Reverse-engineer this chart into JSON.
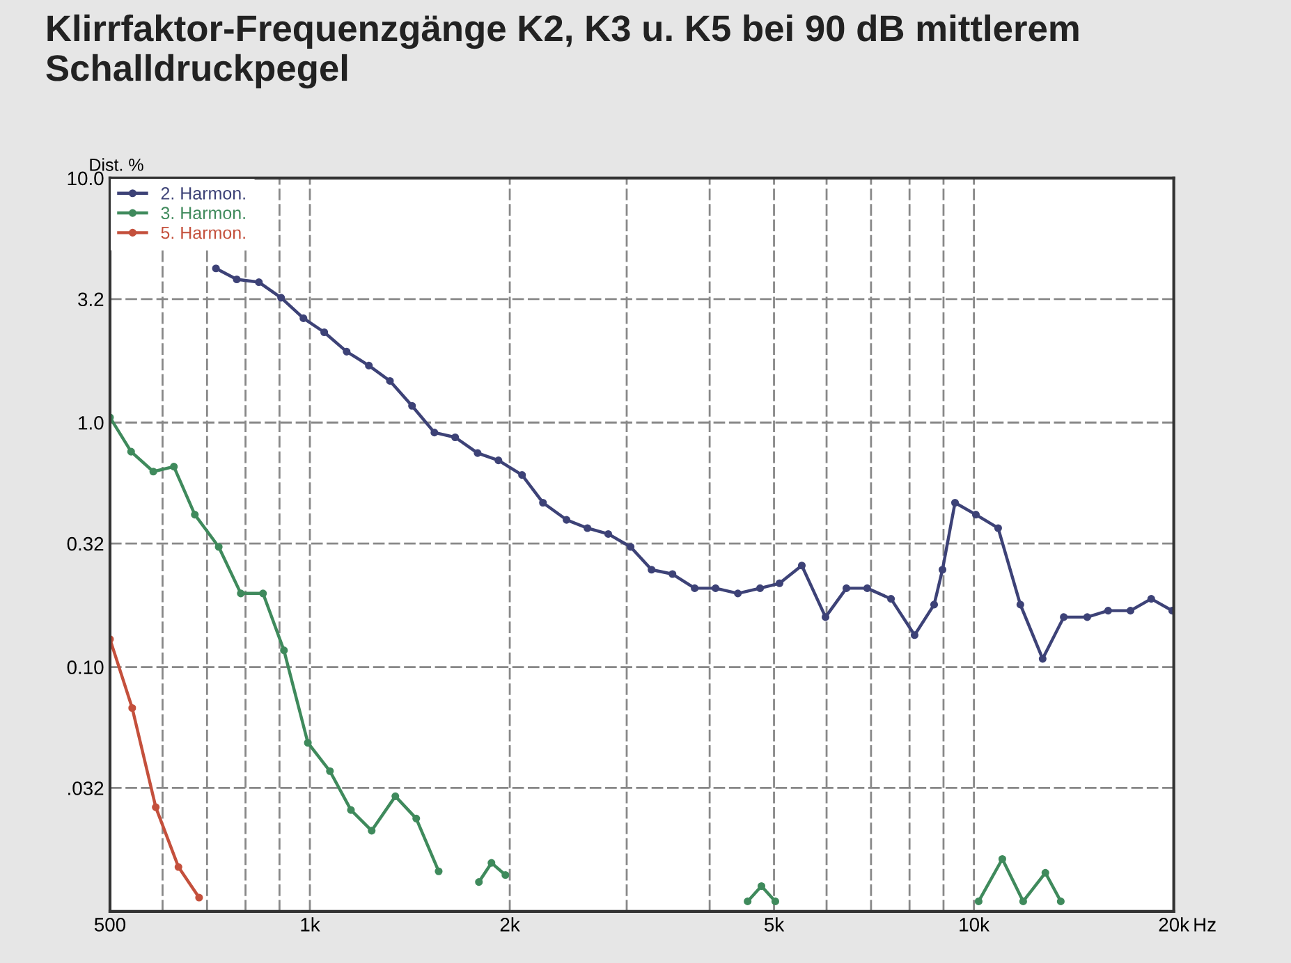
{
  "chart_data": {
    "type": "line",
    "title": "Klirrfaktor-Frequenzgänge K2, K3 u. K5 bei 90 dB mittlerem Schalldruckpegel",
    "ylabel": "Dist. %",
    "log": "xy",
    "grid": true,
    "legend": "top left",
    "marker": "circle",
    "line_style": "solid",
    "xlim": [
      500,
      20000
    ],
    "ylim": [
      0.01,
      10
    ],
    "xticks": [
      {
        "value": 500,
        "label": "500"
      },
      {
        "value": 600,
        "label": null
      },
      {
        "value": 700,
        "label": null
      },
      {
        "value": 800,
        "label": null
      },
      {
        "value": 900,
        "label": null
      },
      {
        "value": 1000,
        "label": "1k"
      },
      {
        "value": 2000,
        "label": "2k"
      },
      {
        "value": 3000,
        "label": null
      },
      {
        "value": 4000,
        "label": null
      },
      {
        "value": 5000,
        "label": "5k"
      },
      {
        "value": 6000,
        "label": null
      },
      {
        "value": 7000,
        "label": null
      },
      {
        "value": 8000,
        "label": null
      },
      {
        "value": 9000,
        "label": null
      },
      {
        "value": 10000,
        "label": "10k"
      },
      {
        "value": 20000,
        "label": "20k"
      }
    ],
    "xlabel": "Hz",
    "yticks": [
      {
        "value": 0.01,
        "label": null
      },
      {
        "value": 0.032,
        "label": ".032"
      },
      {
        "value": 0.1,
        "label": "0.10"
      },
      {
        "value": 0.32,
        "label": "0.32"
      },
      {
        "value": 1,
        "label": "1.0"
      },
      {
        "value": 3.2,
        "label": "3.2"
      },
      {
        "value": 10,
        "label": "10.0"
      }
    ],
    "series": [
      {
        "name": "2. Harmon.",
        "color": "#3d4277",
        "x": [
          722,
          776,
          838,
          905,
          978,
          1051,
          1136,
          1227,
          1320,
          1425,
          1540,
          1655,
          1789,
          1923,
          2087,
          2244,
          2435,
          2618,
          2814,
          3041,
          3270,
          3516,
          3798,
          4083,
          4411,
          4764,
          5097,
          5506,
          5978,
          6427,
          6908,
          7502,
          8141,
          8712,
          8968,
          9367,
          10069,
          10877,
          11748,
          12693,
          13657,
          14815,
          15928,
          17212,
          18496,
          19894
        ],
        "values": [
          4.27,
          3.85,
          3.75,
          3.24,
          2.67,
          2.34,
          1.95,
          1.71,
          1.48,
          1.17,
          0.91,
          0.87,
          0.75,
          0.7,
          0.61,
          0.47,
          0.4,
          0.37,
          0.35,
          0.31,
          0.25,
          0.24,
          0.21,
          0.21,
          0.2,
          0.21,
          0.22,
          0.26,
          0.16,
          0.21,
          0.21,
          0.19,
          0.135,
          0.18,
          0.25,
          0.47,
          0.42,
          0.37,
          0.18,
          0.108,
          0.16,
          0.16,
          0.17,
          0.17,
          0.19,
          0.17
        ]
      },
      {
        "name": "3. Harmon.",
        "color": "#3f8a5c",
        "x": [
          500,
          538,
          581,
          624,
          671,
          729,
          787,
          850,
          914,
          993,
          1072,
          1153,
          1239,
          1345,
          1446,
          1563,
          1650,
          1797,
          1877,
          1970,
          3500,
          4563,
          4787,
          5023,
          7000,
          10166,
          11036,
          11864,
          12813,
          13516
        ],
        "values": [
          1.05,
          0.76,
          0.63,
          0.66,
          0.42,
          0.31,
          0.2,
          0.2,
          0.117,
          0.049,
          0.0375,
          0.026,
          0.0214,
          0.0296,
          0.024,
          0.0146,
          null,
          0.0132,
          0.0158,
          0.0141,
          null,
          0.011,
          0.0127,
          0.011,
          null,
          0.011,
          0.0164,
          0.011,
          0.0144,
          0.011
        ]
      },
      {
        "name": "5. Harmon.",
        "color": "#c4503c",
        "x": [
          500,
          540,
          586,
          634,
          681
        ],
        "values": [
          0.13,
          0.068,
          0.0267,
          0.0152,
          0.0114
        ]
      }
    ]
  }
}
